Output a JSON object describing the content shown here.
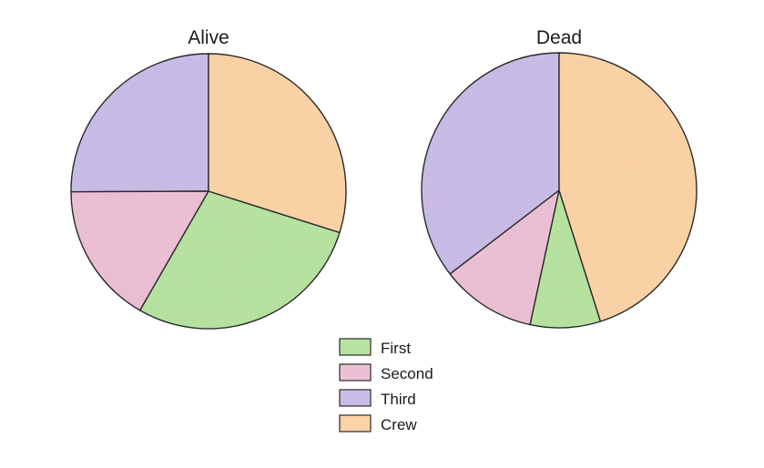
{
  "chart_data": [
    {
      "type": "pie",
      "title": "Alive",
      "categories": [
        "First",
        "Second",
        "Third",
        "Crew"
      ],
      "values": [
        202,
        118,
        178,
        212
      ],
      "start_angle_deg": 0,
      "direction": "counterclockwise-from-top"
    },
    {
      "type": "pie",
      "title": "Dead",
      "categories": [
        "First",
        "Second",
        "Third",
        "Crew"
      ],
      "values": [
        123,
        167,
        528,
        673
      ],
      "start_angle_deg": 0,
      "direction": "counterclockwise-from-top"
    }
  ],
  "legend": {
    "placement": "bottom-center",
    "items": [
      {
        "label": "First",
        "color": "#b7e3a1"
      },
      {
        "label": "Second",
        "color": "#ecc0d4"
      },
      {
        "label": "Third",
        "color": "#c9bde8"
      },
      {
        "label": "Crew",
        "color": "#fbd3a6"
      }
    ]
  }
}
